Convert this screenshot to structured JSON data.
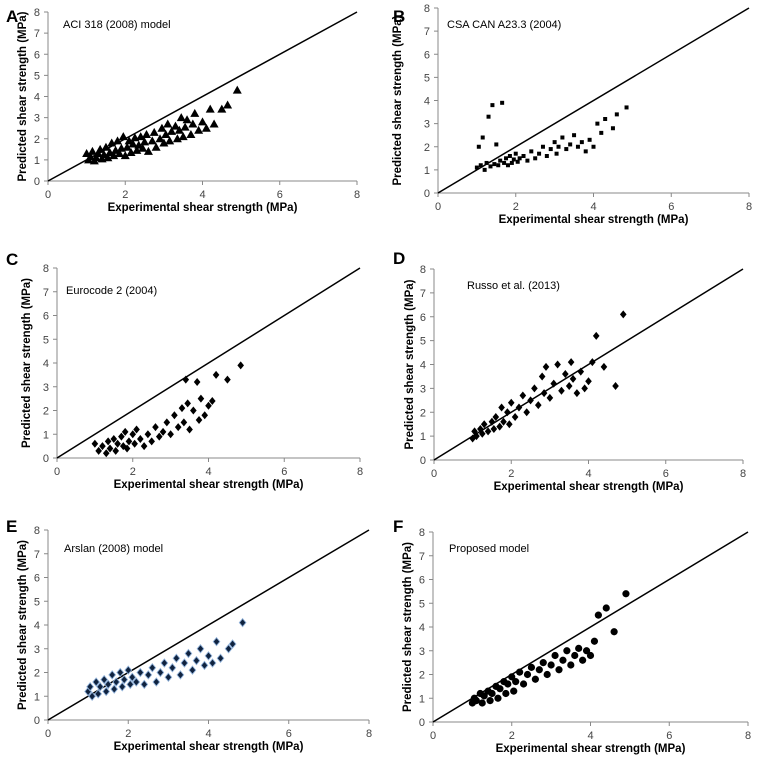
{
  "figure": {
    "xlabel": "Experimental shear strength (MPa)",
    "ylabel": "Predicted shear strength (MPa)",
    "xticks": [
      "0",
      "2",
      "4",
      "6",
      "8"
    ],
    "yticks": [
      "0",
      "1",
      "2",
      "3",
      "4",
      "5",
      "6",
      "7",
      "8"
    ]
  },
  "colors": {
    "marker_default": "#000000",
    "marker_E": "#10233f",
    "marker_E_edge": "#8fb0d8"
  },
  "chart_data": [
    {
      "panel": "A",
      "type": "scatter",
      "title": "ACI 318 (2008) model",
      "marker": "triangle",
      "xlabel": "Experimental shear strength (MPa)",
      "ylabel": "Predicted shear strength (MPa)",
      "xlim": [
        0,
        8
      ],
      "ylim": [
        0,
        8
      ],
      "reference_line": [
        [
          0,
          0
        ],
        [
          8,
          8
        ]
      ],
      "points": [
        [
          1.0,
          1.3
        ],
        [
          1.05,
          1.0
        ],
        [
          1.1,
          1.15
        ],
        [
          1.15,
          1.4
        ],
        [
          1.2,
          0.95
        ],
        [
          1.25,
          1.1
        ],
        [
          1.3,
          1.3
        ],
        [
          1.35,
          1.5
        ],
        [
          1.4,
          1.05
        ],
        [
          1.45,
          1.25
        ],
        [
          1.5,
          1.6
        ],
        [
          1.55,
          1.1
        ],
        [
          1.6,
          1.35
        ],
        [
          1.65,
          1.8
        ],
        [
          1.7,
          1.2
        ],
        [
          1.75,
          1.45
        ],
        [
          1.8,
          1.9
        ],
        [
          1.85,
          1.3
        ],
        [
          1.9,
          1.55
        ],
        [
          1.95,
          2.1
        ],
        [
          2.0,
          1.2
        ],
        [
          2.05,
          1.6
        ],
        [
          2.1,
          1.9
        ],
        [
          2.15,
          1.35
        ],
        [
          2.2,
          1.75
        ],
        [
          2.25,
          2.05
        ],
        [
          2.3,
          1.45
        ],
        [
          2.35,
          1.7
        ],
        [
          2.4,
          2.1
        ],
        [
          2.45,
          1.55
        ],
        [
          2.5,
          1.85
        ],
        [
          2.55,
          2.2
        ],
        [
          2.6,
          1.4
        ],
        [
          2.7,
          1.9
        ],
        [
          2.75,
          2.3
        ],
        [
          2.8,
          1.6
        ],
        [
          2.9,
          2.0
        ],
        [
          2.95,
          2.5
        ],
        [
          3.0,
          1.8
        ],
        [
          3.05,
          2.2
        ],
        [
          3.1,
          2.7
        ],
        [
          3.15,
          1.9
        ],
        [
          3.2,
          2.35
        ],
        [
          3.3,
          2.6
        ],
        [
          3.35,
          2.0
        ],
        [
          3.4,
          2.4
        ],
        [
          3.45,
          3.0
        ],
        [
          3.5,
          2.1
        ],
        [
          3.55,
          2.55
        ],
        [
          3.6,
          2.9
        ],
        [
          3.7,
          2.2
        ],
        [
          3.75,
          2.7
        ],
        [
          3.8,
          3.2
        ],
        [
          3.9,
          2.4
        ],
        [
          4.0,
          2.8
        ],
        [
          4.1,
          2.5
        ],
        [
          4.2,
          3.4
        ],
        [
          4.3,
          2.7
        ],
        [
          4.5,
          3.4
        ],
        [
          4.65,
          3.6
        ],
        [
          4.9,
          4.3
        ]
      ]
    },
    {
      "panel": "B",
      "type": "scatter",
      "title": "CSA CAN A23.3 (2004)",
      "marker": "square",
      "xlabel": "Experimental shear strength (MPa)",
      "ylabel": "Predicted shear strength (MPa)",
      "xlim": [
        0,
        8
      ],
      "ylim": [
        0,
        8
      ],
      "reference_line": [
        [
          0,
          0
        ],
        [
          8,
          8
        ]
      ],
      "points": [
        [
          1.0,
          1.1
        ],
        [
          1.05,
          2.0
        ],
        [
          1.1,
          1.2
        ],
        [
          1.15,
          2.4
        ],
        [
          1.2,
          1.0
        ],
        [
          1.25,
          1.3
        ],
        [
          1.3,
          3.3
        ],
        [
          1.35,
          1.15
        ],
        [
          1.4,
          3.8
        ],
        [
          1.45,
          1.25
        ],
        [
          1.5,
          2.1
        ],
        [
          1.55,
          1.2
        ],
        [
          1.6,
          1.4
        ],
        [
          1.65,
          3.9
        ],
        [
          1.7,
          1.3
        ],
        [
          1.75,
          1.5
        ],
        [
          1.8,
          1.2
        ],
        [
          1.85,
          1.6
        ],
        [
          1.9,
          1.3
        ],
        [
          1.95,
          1.45
        ],
        [
          2.0,
          1.7
        ],
        [
          2.05,
          1.35
        ],
        [
          2.1,
          1.5
        ],
        [
          2.2,
          1.6
        ],
        [
          2.3,
          1.4
        ],
        [
          2.4,
          1.8
        ],
        [
          2.5,
          1.5
        ],
        [
          2.6,
          1.7
        ],
        [
          2.7,
          2.0
        ],
        [
          2.8,
          1.6
        ],
        [
          2.9,
          1.9
        ],
        [
          3.0,
          2.2
        ],
        [
          3.05,
          1.7
        ],
        [
          3.1,
          2.0
        ],
        [
          3.2,
          2.4
        ],
        [
          3.3,
          1.9
        ],
        [
          3.4,
          2.1
        ],
        [
          3.5,
          2.5
        ],
        [
          3.6,
          2.0
        ],
        [
          3.7,
          2.2
        ],
        [
          3.8,
          1.8
        ],
        [
          3.9,
          2.3
        ],
        [
          4.0,
          2.0
        ],
        [
          4.1,
          3.0
        ],
        [
          4.2,
          2.6
        ],
        [
          4.3,
          3.2
        ],
        [
          4.5,
          2.8
        ],
        [
          4.6,
          3.4
        ],
        [
          4.85,
          3.7
        ]
      ]
    },
    {
      "panel": "C",
      "type": "scatter",
      "title": "Eurocode 2  (2004)",
      "marker": "diamond",
      "xlabel": "Experimental shear strength (MPa)",
      "ylabel": "Predicted shear strength (MPa)",
      "xlim": [
        0,
        8
      ],
      "ylim": [
        0,
        8
      ],
      "reference_line": [
        [
          0,
          0
        ],
        [
          8,
          8
        ]
      ],
      "points": [
        [
          1.0,
          0.6
        ],
        [
          1.1,
          0.3
        ],
        [
          1.2,
          0.5
        ],
        [
          1.3,
          0.2
        ],
        [
          1.35,
          0.7
        ],
        [
          1.4,
          0.4
        ],
        [
          1.5,
          0.8
        ],
        [
          1.55,
          0.3
        ],
        [
          1.6,
          0.6
        ],
        [
          1.7,
          0.9
        ],
        [
          1.75,
          0.5
        ],
        [
          1.8,
          1.1
        ],
        [
          1.85,
          0.4
        ],
        [
          1.9,
          0.7
        ],
        [
          2.0,
          1.0
        ],
        [
          2.05,
          0.6
        ],
        [
          2.1,
          1.2
        ],
        [
          2.2,
          0.8
        ],
        [
          2.3,
          0.5
        ],
        [
          2.4,
          1.0
        ],
        [
          2.5,
          0.7
        ],
        [
          2.6,
          1.3
        ],
        [
          2.7,
          0.9
        ],
        [
          2.8,
          1.1
        ],
        [
          2.9,
          1.5
        ],
        [
          3.0,
          1.0
        ],
        [
          3.1,
          1.8
        ],
        [
          3.2,
          1.3
        ],
        [
          3.3,
          2.1
        ],
        [
          3.35,
          1.5
        ],
        [
          3.4,
          3.3
        ],
        [
          3.45,
          2.3
        ],
        [
          3.5,
          1.2
        ],
        [
          3.6,
          2.0
        ],
        [
          3.7,
          3.2
        ],
        [
          3.75,
          1.6
        ],
        [
          3.8,
          2.5
        ],
        [
          3.9,
          1.8
        ],
        [
          4.0,
          2.2
        ],
        [
          4.1,
          2.4
        ],
        [
          4.2,
          3.5
        ],
        [
          4.5,
          3.3
        ],
        [
          4.85,
          3.9
        ]
      ]
    },
    {
      "panel": "D",
      "type": "scatter",
      "title": "Russo et al. (2013)",
      "marker": "diamond",
      "xlabel": "Experimental shear strength (MPa)",
      "ylabel": "Predicted shear strength (MPa)",
      "xlim": [
        0,
        8
      ],
      "ylim": [
        0,
        8
      ],
      "reference_line": [
        [
          0,
          0
        ],
        [
          8,
          8
        ]
      ],
      "points": [
        [
          1.0,
          0.9
        ],
        [
          1.05,
          1.2
        ],
        [
          1.1,
          1.0
        ],
        [
          1.2,
          1.3
        ],
        [
          1.25,
          1.1
        ],
        [
          1.3,
          1.5
        ],
        [
          1.4,
          1.2
        ],
        [
          1.5,
          1.6
        ],
        [
          1.55,
          1.3
        ],
        [
          1.6,
          1.8
        ],
        [
          1.7,
          1.4
        ],
        [
          1.75,
          2.2
        ],
        [
          1.8,
          1.6
        ],
        [
          1.9,
          2.0
        ],
        [
          1.95,
          1.5
        ],
        [
          2.0,
          2.4
        ],
        [
          2.1,
          1.8
        ],
        [
          2.2,
          2.2
        ],
        [
          2.3,
          2.7
        ],
        [
          2.4,
          2.0
        ],
        [
          2.5,
          2.5
        ],
        [
          2.6,
          3.0
        ],
        [
          2.7,
          2.3
        ],
        [
          2.8,
          3.5
        ],
        [
          2.85,
          2.8
        ],
        [
          2.9,
          3.9
        ],
        [
          3.0,
          2.6
        ],
        [
          3.1,
          3.2
        ],
        [
          3.2,
          4.0
        ],
        [
          3.3,
          2.9
        ],
        [
          3.4,
          3.6
        ],
        [
          3.5,
          3.1
        ],
        [
          3.55,
          4.1
        ],
        [
          3.6,
          3.4
        ],
        [
          3.7,
          2.8
        ],
        [
          3.8,
          3.7
        ],
        [
          3.9,
          3.0
        ],
        [
          4.0,
          3.3
        ],
        [
          4.1,
          4.1
        ],
        [
          4.2,
          5.2
        ],
        [
          4.4,
          3.9
        ],
        [
          4.7,
          3.1
        ],
        [
          4.9,
          6.1
        ]
      ]
    },
    {
      "panel": "E",
      "type": "scatter",
      "title": "Arslan (2008) model",
      "marker": "diamond",
      "xlabel": "Experimental shear strength (MPa)",
      "ylabel": "Predicted shear strength (MPa)",
      "xlim": [
        0,
        8
      ],
      "ylim": [
        0,
        8
      ],
      "reference_line": [
        [
          0,
          0
        ],
        [
          8,
          8
        ]
      ],
      "points": [
        [
          1.0,
          1.2
        ],
        [
          1.05,
          1.4
        ],
        [
          1.1,
          1.0
        ],
        [
          1.2,
          1.6
        ],
        [
          1.25,
          1.1
        ],
        [
          1.3,
          1.4
        ],
        [
          1.4,
          1.7
        ],
        [
          1.45,
          1.2
        ],
        [
          1.5,
          1.5
        ],
        [
          1.6,
          1.9
        ],
        [
          1.65,
          1.3
        ],
        [
          1.7,
          1.6
        ],
        [
          1.8,
          2.0
        ],
        [
          1.85,
          1.4
        ],
        [
          1.9,
          1.7
        ],
        [
          2.0,
          2.1
        ],
        [
          2.05,
          1.5
        ],
        [
          2.1,
          1.8
        ],
        [
          2.2,
          1.6
        ],
        [
          2.3,
          2.0
        ],
        [
          2.4,
          1.5
        ],
        [
          2.5,
          1.9
        ],
        [
          2.6,
          2.2
        ],
        [
          2.7,
          1.6
        ],
        [
          2.8,
          2.0
        ],
        [
          2.9,
          2.4
        ],
        [
          3.0,
          1.8
        ],
        [
          3.1,
          2.2
        ],
        [
          3.2,
          2.6
        ],
        [
          3.3,
          1.9
        ],
        [
          3.4,
          2.4
        ],
        [
          3.5,
          2.8
        ],
        [
          3.6,
          2.1
        ],
        [
          3.7,
          2.5
        ],
        [
          3.8,
          3.0
        ],
        [
          3.9,
          2.3
        ],
        [
          4.0,
          2.7
        ],
        [
          4.1,
          2.4
        ],
        [
          4.2,
          3.3
        ],
        [
          4.3,
          2.6
        ],
        [
          4.5,
          3.0
        ],
        [
          4.6,
          3.2
        ],
        [
          4.85,
          4.1
        ]
      ]
    },
    {
      "panel": "F",
      "type": "scatter",
      "title": "Proposed model",
      "marker": "circle",
      "xlabel": "Experimental shear strength (MPa)",
      "ylabel": "Predicted shear strength (MPa)",
      "xlim": [
        0,
        8
      ],
      "ylim": [
        0,
        8
      ],
      "reference_line": [
        [
          0,
          0
        ],
        [
          8,
          8
        ]
      ],
      "points": [
        [
          1.0,
          0.8
        ],
        [
          1.05,
          1.0
        ],
        [
          1.1,
          0.9
        ],
        [
          1.2,
          1.2
        ],
        [
          1.25,
          0.8
        ],
        [
          1.3,
          1.1
        ],
        [
          1.4,
          1.3
        ],
        [
          1.45,
          0.9
        ],
        [
          1.5,
          1.2
        ],
        [
          1.6,
          1.5
        ],
        [
          1.65,
          1.0
        ],
        [
          1.7,
          1.4
        ],
        [
          1.8,
          1.7
        ],
        [
          1.85,
          1.2
        ],
        [
          1.9,
          1.6
        ],
        [
          2.0,
          1.9
        ],
        [
          2.05,
          1.3
        ],
        [
          2.1,
          1.7
        ],
        [
          2.2,
          2.1
        ],
        [
          2.3,
          1.6
        ],
        [
          2.4,
          2.0
        ],
        [
          2.5,
          2.3
        ],
        [
          2.6,
          1.8
        ],
        [
          2.7,
          2.2
        ],
        [
          2.8,
          2.5
        ],
        [
          2.9,
          2.0
        ],
        [
          3.0,
          2.4
        ],
        [
          3.1,
          2.8
        ],
        [
          3.2,
          2.2
        ],
        [
          3.3,
          2.6
        ],
        [
          3.4,
          3.0
        ],
        [
          3.5,
          2.4
        ],
        [
          3.6,
          2.8
        ],
        [
          3.7,
          3.1
        ],
        [
          3.8,
          2.6
        ],
        [
          3.9,
          3.0
        ],
        [
          4.0,
          2.8
        ],
        [
          4.1,
          3.4
        ],
        [
          4.2,
          4.5
        ],
        [
          4.4,
          4.8
        ],
        [
          4.6,
          3.8
        ],
        [
          4.9,
          5.4
        ]
      ]
    }
  ]
}
